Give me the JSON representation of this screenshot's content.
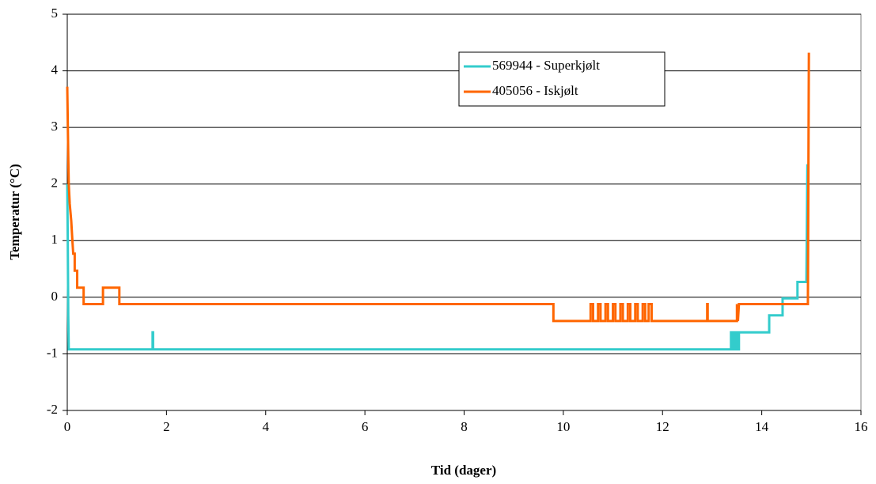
{
  "chart_data": {
    "type": "line",
    "xlabel": "Tid (dager)",
    "ylabel": "Temperatur (°C)",
    "xlim": [
      0,
      16
    ],
    "xticks": [
      0,
      2,
      4,
      6,
      8,
      10,
      12,
      14,
      16
    ],
    "ylim": [
      -2,
      5
    ],
    "yticks": [
      -2,
      -1,
      0,
      1,
      2,
      3,
      4,
      5
    ],
    "grid": true,
    "legend": "upper right",
    "series": [
      {
        "name": "569944 - Superkjølt",
        "color": "#33cccc",
        "x": [
          0,
          0.01,
          0.02,
          0.03,
          1.72,
          1.72,
          1.73,
          1.73,
          13.38,
          13.38,
          13.42,
          13.42,
          13.46,
          13.46,
          13.5,
          13.5,
          13.54,
          13.54,
          14.15,
          14.15,
          14.42,
          14.42,
          14.72,
          14.72,
          14.9,
          14.92
        ],
        "values": [
          2.0,
          1.0,
          -0.32,
          -0.92,
          -0.92,
          -0.62,
          -0.62,
          -0.92,
          -0.92,
          -0.62,
          -0.62,
          -0.92,
          -0.92,
          -0.62,
          -0.62,
          -0.92,
          -0.92,
          -0.62,
          -0.62,
          -0.32,
          -0.32,
          -0.02,
          -0.02,
          0.27,
          0.27,
          2.35
        ]
      },
      {
        "name": "405056 - Iskjølt",
        "color": "#ff6600",
        "x": [
          0,
          0.01,
          0.02,
          0.03,
          0.05,
          0.08,
          0.1,
          0.12,
          0.15,
          0.15,
          0.2,
          0.2,
          0.33,
          0.33,
          0.72,
          0.72,
          1.05,
          1.05,
          9.8,
          9.8,
          10.55,
          10.55,
          10.6,
          10.6,
          10.7,
          10.7,
          10.75,
          10.75,
          10.85,
          10.85,
          10.9,
          10.9,
          11.0,
          11.0,
          11.05,
          11.05,
          11.15,
          11.15,
          11.2,
          11.2,
          11.3,
          11.3,
          11.35,
          11.35,
          11.45,
          11.45,
          11.5,
          11.5,
          11.6,
          11.6,
          11.65,
          11.65,
          11.72,
          11.72,
          11.78,
          11.78,
          12.9,
          12.9,
          12.91,
          12.91,
          13.5,
          13.5,
          13.52,
          13.54,
          14.93,
          14.95
        ],
        "values": [
          3.72,
          3.1,
          2.5,
          2.0,
          1.65,
          1.35,
          1.05,
          0.77,
          0.77,
          0.47,
          0.47,
          0.17,
          0.17,
          -0.12,
          -0.12,
          0.17,
          0.17,
          -0.12,
          -0.12,
          -0.42,
          -0.42,
          -0.12,
          -0.12,
          -0.42,
          -0.42,
          -0.12,
          -0.12,
          -0.42,
          -0.42,
          -0.12,
          -0.12,
          -0.42,
          -0.42,
          -0.12,
          -0.12,
          -0.42,
          -0.42,
          -0.12,
          -0.12,
          -0.42,
          -0.42,
          -0.12,
          -0.12,
          -0.42,
          -0.42,
          -0.12,
          -0.12,
          -0.42,
          -0.42,
          -0.12,
          -0.12,
          -0.42,
          -0.42,
          -0.12,
          -0.12,
          -0.42,
          -0.42,
          -0.12,
          -0.12,
          -0.42,
          -0.42,
          -0.12,
          -0.42,
          -0.12,
          -0.12,
          4.32
        ]
      }
    ]
  }
}
